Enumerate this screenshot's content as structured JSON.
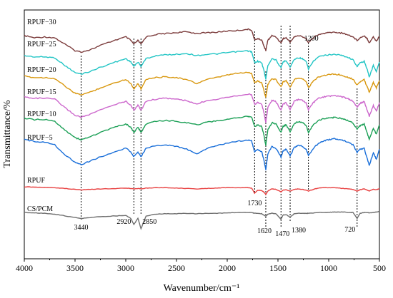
{
  "chart_data": {
    "type": "line",
    "title": "",
    "xlabel": "Wavenumber/cm⁻¹",
    "ylabel": "Transmittance/%",
    "xlim": [
      4000,
      500
    ],
    "x_reversed": true,
    "x_ticks": [
      4000,
      3500,
      3000,
      2500,
      2000,
      1500,
      1000,
      500
    ],
    "y_ticks_shown": false,
    "grid": false,
    "legend": "none (series labeled inline at left)",
    "y_scale": "arbitrary, offset spectra (no numeric values printed)",
    "series": [
      {
        "name": "RPUF−30",
        "color": "#7b3b3b",
        "x": [
          4000,
          3900,
          3800,
          3700,
          3600,
          3500,
          3440,
          3350,
          3250,
          3100,
          3000,
          2950,
          2920,
          2880,
          2850,
          2800,
          2700,
          2600,
          2500,
          2400,
          2300,
          2200,
          2100,
          2000,
          1900,
          1800,
          1760,
          1730,
          1700,
          1660,
          1640,
          1620,
          1600,
          1560,
          1520,
          1470,
          1450,
          1420,
          1380,
          1340,
          1300,
          1260,
          1220,
          1200,
          1150,
          1100,
          1050,
          1000,
          950,
          900,
          850,
          800,
          760,
          720,
          690,
          650,
          620,
          600,
          560,
          530,
          500
        ],
        "y": [
          -0.5,
          -1,
          -0.8,
          -1,
          -2.5,
          -4,
          -4.3,
          -3.8,
          -2.8,
          -1.5,
          -0.8,
          -1.6,
          -2.5,
          -1.6,
          -2.5,
          -0.8,
          -0.2,
          0,
          0.2,
          0.4,
          0,
          0.2,
          0.3,
          0.6,
          0.7,
          1,
          0.8,
          -1.5,
          -1.2,
          -1.5,
          -2.8,
          -4,
          -1.6,
          -0.5,
          -0.8,
          -2.2,
          -1.2,
          -1,
          -2,
          -0.8,
          -0.5,
          -0.7,
          -1.2,
          -2.2,
          -0.9,
          -0.3,
          0,
          0.2,
          0.3,
          0.2,
          0,
          -0.4,
          -0.8,
          -1.6,
          -1,
          -0.5,
          -1.2,
          -2.2,
          -0.8,
          -1.8,
          -0.6
        ]
      },
      {
        "name": "RPUF−25",
        "color": "#22c5c5",
        "x": [
          4000,
          3900,
          3800,
          3700,
          3600,
          3500,
          3440,
          3350,
          3250,
          3100,
          3000,
          2950,
          2920,
          2880,
          2850,
          2800,
          2700,
          2600,
          2500,
          2400,
          2300,
          2200,
          2100,
          2000,
          1900,
          1800,
          1760,
          1730,
          1700,
          1660,
          1640,
          1620,
          1600,
          1560,
          1520,
          1470,
          1450,
          1420,
          1380,
          1340,
          1300,
          1260,
          1220,
          1200,
          1150,
          1100,
          1050,
          1000,
          950,
          900,
          850,
          800,
          760,
          720,
          690,
          650,
          620,
          600,
          560,
          530,
          500
        ],
        "y": [
          -0.5,
          -0.8,
          -0.8,
          -1,
          -2.8,
          -4.5,
          -4.8,
          -4.2,
          -3.2,
          -2,
          -1.2,
          -2,
          -3,
          -2,
          -3,
          -1.2,
          -0.5,
          -0.3,
          -0.2,
          0,
          -0.5,
          -0.2,
          -0.1,
          0.2,
          0.4,
          0.6,
          0.4,
          -2.2,
          -1.8,
          -2.2,
          -3.8,
          -6,
          -2.8,
          -1.2,
          -1.5,
          -3.4,
          -2,
          -1.6,
          -3.2,
          -1.4,
          -1,
          -1.2,
          -2,
          -3.6,
          -1.8,
          -0.8,
          -0.5,
          -0.3,
          -0.2,
          -0.3,
          -0.6,
          -1,
          -1.5,
          -3,
          -2.2,
          -1.8,
          -3.8,
          -5.5,
          -2.8,
          -4.2,
          -2
        ]
      },
      {
        "name": "RPUF−20",
        "color": "#d9980f",
        "x": [
          4000,
          3900,
          3800,
          3700,
          3600,
          3500,
          3440,
          3350,
          3250,
          3100,
          3000,
          2950,
          2920,
          2880,
          2850,
          2800,
          2700,
          2600,
          2500,
          2400,
          2300,
          2200,
          2100,
          2000,
          1900,
          1800,
          1760,
          1730,
          1700,
          1660,
          1640,
          1620,
          1600,
          1560,
          1520,
          1470,
          1450,
          1420,
          1380,
          1340,
          1300,
          1260,
          1220,
          1200,
          1150,
          1100,
          1050,
          1000,
          950,
          900,
          850,
          800,
          760,
          720,
          690,
          650,
          620,
          600,
          560,
          530,
          500
        ],
        "y": [
          -0.5,
          -0.8,
          -0.8,
          -1,
          -2.8,
          -4.5,
          -4.8,
          -4.2,
          -3.2,
          -2,
          -1.2,
          -2.2,
          -3.4,
          -2.2,
          -3.4,
          -1.2,
          -0.8,
          -0.6,
          -0.8,
          -1.3,
          -2.2,
          -1.2,
          -0.8,
          -0.2,
          0.2,
          0.4,
          0.2,
          -2,
          -1.6,
          -2,
          -3.6,
          -5.5,
          -2.5,
          -1,
          -1.3,
          -3,
          -1.8,
          -1.5,
          -3,
          -1.3,
          -0.9,
          -1.1,
          -1.8,
          -3.2,
          -1.6,
          -0.6,
          -0.3,
          -0.1,
          0,
          -0.1,
          -0.4,
          -0.8,
          -1.2,
          -2.5,
          -1.8,
          -1.3,
          -3,
          -4.2,
          -2,
          -3.2,
          -1.5
        ]
      },
      {
        "name": "RPUF−15",
        "color": "#cc66cc",
        "x": [
          4000,
          3900,
          3800,
          3700,
          3600,
          3500,
          3440,
          3350,
          3250,
          3100,
          3000,
          2950,
          2920,
          2880,
          2850,
          2800,
          2700,
          2600,
          2500,
          2400,
          2300,
          2200,
          2100,
          2000,
          1900,
          1800,
          1760,
          1730,
          1700,
          1660,
          1640,
          1620,
          1600,
          1560,
          1520,
          1470,
          1450,
          1420,
          1380,
          1340,
          1300,
          1260,
          1220,
          1200,
          1150,
          1100,
          1050,
          1000,
          950,
          900,
          850,
          800,
          760,
          720,
          690,
          650,
          620,
          600,
          560,
          530,
          500
        ],
        "y": [
          -0.5,
          -0.8,
          -0.8,
          -1,
          -3,
          -4.8,
          -5.2,
          -4.6,
          -3.5,
          -2.2,
          -1.5,
          -2.4,
          -3.6,
          -2.4,
          -3.6,
          -1.5,
          -1,
          -0.8,
          -1,
          -1.4,
          -2.2,
          -1.3,
          -1,
          -0.5,
          -0.2,
          0.2,
          0,
          -2.2,
          -1.8,
          -2.2,
          -4,
          -6.5,
          -3,
          -1.3,
          -1.6,
          -3.6,
          -2.2,
          -1.8,
          -3.4,
          -1.5,
          -1.1,
          -1.3,
          -2,
          -3.5,
          -1.8,
          -0.8,
          -0.5,
          -0.3,
          -0.2,
          -0.3,
          -0.6,
          -1,
          -1.5,
          -2.8,
          -2,
          -1.6,
          -3.6,
          -5,
          -2.5,
          -3.8,
          -1.8
        ]
      },
      {
        "name": "RPUF−10",
        "color": "#1a9f55",
        "x": [
          4000,
          3900,
          3800,
          3700,
          3600,
          3500,
          3440,
          3350,
          3250,
          3100,
          3000,
          2950,
          2920,
          2880,
          2850,
          2800,
          2700,
          2600,
          2500,
          2400,
          2300,
          2200,
          2100,
          2000,
          1900,
          1800,
          1760,
          1730,
          1700,
          1660,
          1640,
          1620,
          1600,
          1560,
          1520,
          1470,
          1450,
          1420,
          1380,
          1340,
          1300,
          1260,
          1220,
          1200,
          1150,
          1100,
          1050,
          1000,
          950,
          900,
          850,
          800,
          760,
          720,
          690,
          650,
          620,
          600,
          560,
          530,
          500
        ],
        "y": [
          -0.5,
          -0.8,
          -0.8,
          -1.2,
          -3.2,
          -5,
          -5.5,
          -4.8,
          -3.8,
          -2.5,
          -1.8,
          -2.6,
          -3.8,
          -2.6,
          -3.8,
          -1.8,
          -1.2,
          -1,
          -1.2,
          -1.5,
          -2,
          -1.4,
          -1.1,
          -0.7,
          -0.4,
          0,
          -0.2,
          -2.4,
          -2,
          -2.4,
          -4.2,
          -6.8,
          -3.2,
          -1.5,
          -1.8,
          -3.8,
          -2.4,
          -2,
          -3.6,
          -1.7,
          -1.3,
          -1.5,
          -2.2,
          -3.8,
          -2,
          -1,
          -0.6,
          -0.4,
          -0.3,
          -0.4,
          -0.7,
          -1.1,
          -1.6,
          -3,
          -2.2,
          -1.8,
          -4,
          -5.5,
          -2.8,
          -4.2,
          -2
        ]
      },
      {
        "name": "RPUF−5",
        "color": "#1a6fd9",
        "x": [
          4000,
          3900,
          3800,
          3700,
          3600,
          3500,
          3440,
          3350,
          3250,
          3100,
          3000,
          2950,
          2920,
          2880,
          2850,
          2800,
          2700,
          2600,
          2500,
          2400,
          2300,
          2200,
          2100,
          2000,
          1900,
          1800,
          1760,
          1730,
          1700,
          1660,
          1640,
          1620,
          1600,
          1560,
          1520,
          1470,
          1450,
          1420,
          1380,
          1340,
          1300,
          1260,
          1220,
          1200,
          1150,
          1100,
          1050,
          1000,
          950,
          900,
          850,
          800,
          760,
          720,
          690,
          650,
          620,
          600,
          560,
          530,
          500
        ],
        "y": [
          0,
          -0.4,
          -0.5,
          -1.2,
          -3.5,
          -5.2,
          -5.8,
          -5,
          -4,
          -2.8,
          -2,
          -2.8,
          -4,
          -2.8,
          -4,
          -2,
          -1.4,
          -1.2,
          -1.6,
          -2.2,
          -3.4,
          -2,
          -1.4,
          -0.8,
          -0.4,
          0,
          -0.3,
          -2.8,
          -2.3,
          -2.8,
          -4.6,
          -7,
          -3.4,
          -1.6,
          -2,
          -4,
          -2.6,
          -2.2,
          -3.8,
          -1.8,
          -1.3,
          -1.5,
          -2.3,
          -3.6,
          -2,
          -0.8,
          -0.3,
          0,
          0.2,
          0.1,
          -0.2,
          -0.6,
          -1.2,
          -3,
          -2.2,
          -2,
          -4.5,
          -6,
          -3,
          -4.6,
          -2.2
        ]
      },
      {
        "name": "RPUF",
        "color": "#e84040",
        "x": [
          4000,
          3900,
          3800,
          3700,
          3600,
          3500,
          3440,
          3350,
          3250,
          3100,
          3000,
          2950,
          2920,
          2880,
          2850,
          2800,
          2700,
          2600,
          2500,
          2400,
          2300,
          2200,
          2100,
          2000,
          1900,
          1800,
          1760,
          1730,
          1700,
          1660,
          1640,
          1620,
          1600,
          1560,
          1520,
          1470,
          1450,
          1420,
          1380,
          1340,
          1300,
          1260,
          1220,
          1200,
          1150,
          1100,
          1050,
          1000,
          950,
          900,
          850,
          800,
          760,
          720,
          690,
          650,
          620,
          600,
          560,
          530,
          500
        ],
        "y": [
          0,
          -0.1,
          -0.1,
          -0.2,
          -0.4,
          -0.6,
          -0.7,
          -0.6,
          -0.5,
          -0.4,
          -0.3,
          -0.4,
          -0.5,
          -0.4,
          -0.5,
          -0.3,
          -0.2,
          -0.2,
          -0.3,
          -0.4,
          -0.5,
          -0.4,
          -0.3,
          -0.2,
          -0.2,
          -0.2,
          -0.3,
          -1.5,
          -0.8,
          -0.9,
          -1.2,
          -1.8,
          -1,
          -0.5,
          -0.6,
          -1.2,
          -0.8,
          -0.7,
          -1,
          -0.6,
          -0.5,
          -0.6,
          -0.8,
          -1,
          -0.6,
          -0.3,
          -0.2,
          -0.2,
          -0.2,
          -0.3,
          -0.4,
          -0.5,
          -0.6,
          -1,
          -0.7,
          -0.5,
          -0.8,
          -1,
          -0.6,
          -0.7,
          -0.4
        ]
      },
      {
        "name": "CS/PCM",
        "color": "#6e6e6e",
        "x": [
          4000,
          3900,
          3800,
          3700,
          3600,
          3500,
          3440,
          3350,
          3250,
          3100,
          3000,
          2950,
          2920,
          2880,
          2850,
          2800,
          2700,
          2600,
          2500,
          2400,
          2300,
          2200,
          2100,
          2000,
          1900,
          1800,
          1760,
          1730,
          1700,
          1660,
          1640,
          1620,
          1600,
          1560,
          1520,
          1470,
          1450,
          1420,
          1380,
          1340,
          1300,
          1260,
          1220,
          1200,
          1150,
          1100,
          1050,
          1000,
          950,
          900,
          850,
          800,
          760,
          720,
          690,
          650,
          620,
          600,
          560,
          530,
          500
        ],
        "y": [
          0,
          -0.1,
          -0.2,
          -0.4,
          -0.8,
          -1.2,
          -1.4,
          -1.2,
          -1,
          -0.8,
          -0.7,
          -1.4,
          -2.8,
          -1.4,
          -3.8,
          -0.8,
          -0.4,
          -0.3,
          -0.3,
          -0.2,
          -0.3,
          -0.2,
          -0.2,
          -0.1,
          0,
          0,
          0,
          -0.2,
          -0.2,
          -0.3,
          -0.6,
          -0.9,
          -0.4,
          -0.2,
          -0.3,
          -1.6,
          -0.6,
          -0.5,
          -1.1,
          -0.3,
          -0.2,
          -0.2,
          -0.2,
          -0.2,
          -0.1,
          0,
          0,
          0,
          0.1,
          0.1,
          0.1,
          0,
          0,
          -1.4,
          -0.2,
          0,
          0,
          -0.1,
          0,
          0.1,
          0.2
        ]
      }
    ],
    "reference_lines": [
      3440,
      2920,
      2850,
      1730,
      1620,
      1470,
      1380,
      1200,
      720
    ],
    "annotations": [
      {
        "text": "3440",
        "x": 3440
      },
      {
        "text": "2920",
        "x": 2920
      },
      {
        "text": "2850",
        "x": 2850
      },
      {
        "text": "1730",
        "x": 1730
      },
      {
        "text": "1620",
        "x": 1620
      },
      {
        "text": "1470",
        "x": 1470
      },
      {
        "text": "1380",
        "x": 1380
      },
      {
        "text": "1200",
        "x": 1200
      },
      {
        "text": "720",
        "x": 720
      }
    ]
  }
}
